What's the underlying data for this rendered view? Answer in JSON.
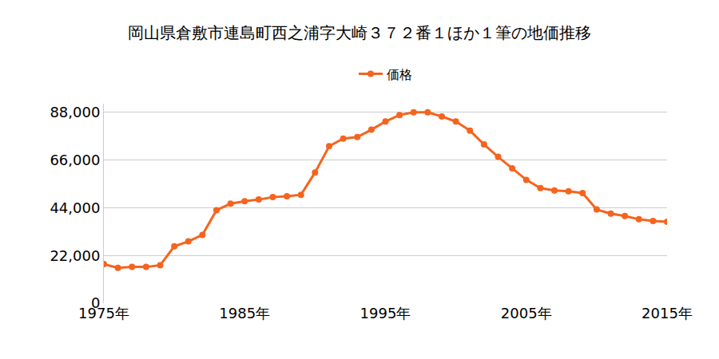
{
  "chart_data": {
    "type": "line",
    "title": "岡山県倉敷市連島町西之浦字大崎３７２番１ほか１筆の地価推移",
    "x": [
      1975,
      1976,
      1977,
      1978,
      1979,
      1980,
      1981,
      1982,
      1983,
      1984,
      1985,
      1986,
      1987,
      1988,
      1989,
      1990,
      1991,
      1992,
      1993,
      1994,
      1995,
      1996,
      1997,
      1998,
      1999,
      2000,
      2001,
      2002,
      2003,
      2004,
      2005,
      2006,
      2007,
      2008,
      2009,
      2010,
      2011,
      2012,
      2013,
      2014,
      2015
    ],
    "series": [
      {
        "name": "価格",
        "color": "#f5641e",
        "marker": "circle",
        "line_style": "solid",
        "values": [
          18000,
          16300,
          16700,
          16700,
          17500,
          26200,
          28500,
          31500,
          42900,
          45900,
          47000,
          47800,
          48900,
          49300,
          50000,
          60300,
          72400,
          75900,
          76600,
          80000,
          83800,
          86800,
          88000,
          88000,
          86100,
          83800,
          79600,
          73200,
          67500,
          62200,
          56900,
          53100,
          52000,
          51600,
          50800,
          43200,
          41300,
          40200,
          38700,
          37900,
          37500
        ]
      }
    ],
    "xlim": [
      1975,
      2015
    ],
    "xticks": [
      {
        "value": 1975,
        "label": "1975年"
      },
      {
        "value": 1985,
        "label": "1985年"
      },
      {
        "value": 1995,
        "label": "1995年"
      },
      {
        "value": 2005,
        "label": "2005年"
      },
      {
        "value": 2015,
        "label": "2015年"
      }
    ],
    "ylim": [
      0,
      92000
    ],
    "yticks": [
      0,
      {
        "value": 22000,
        "label": "22,000"
      },
      {
        "value": 44000,
        "label": "44,000"
      },
      {
        "value": 66000,
        "label": "66,000"
      },
      {
        "value": 88000,
        "label": "88,000"
      }
    ],
    "grid": true,
    "legend": "top"
  }
}
